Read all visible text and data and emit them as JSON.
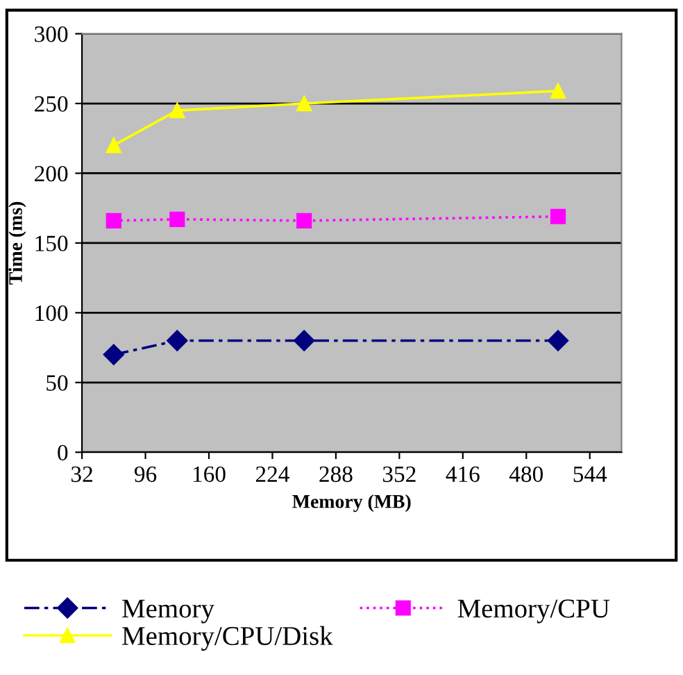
{
  "chart_data": {
    "type": "line",
    "xlabel": "Memory (MB)",
    "ylabel": "Time (ms)",
    "x": [
      64,
      128,
      256,
      512
    ],
    "series": [
      {
        "name": "Memory",
        "color": "#000080",
        "values": [
          70,
          80,
          80,
          80
        ],
        "marker": "diamond",
        "line_style": "dashed"
      },
      {
        "name": "Memory/CPU",
        "color": "#ff00ff",
        "values": [
          166,
          167,
          166,
          169
        ],
        "marker": "square",
        "line_style": "dotted"
      },
      {
        "name": "Memory/CPU/Disk",
        "color": "#ffff00",
        "values": [
          220,
          245,
          250,
          259
        ],
        "marker": "triangle",
        "line_style": "solid"
      }
    ],
    "xlim": [
      32,
      576
    ],
    "xticks": [
      32,
      96,
      160,
      224,
      288,
      352,
      416,
      480,
      544
    ],
    "ylim": [
      0,
      300
    ],
    "yticks": [
      0,
      50,
      100,
      150,
      200,
      250,
      300
    ],
    "grid": "y",
    "legend": "bottom"
  }
}
